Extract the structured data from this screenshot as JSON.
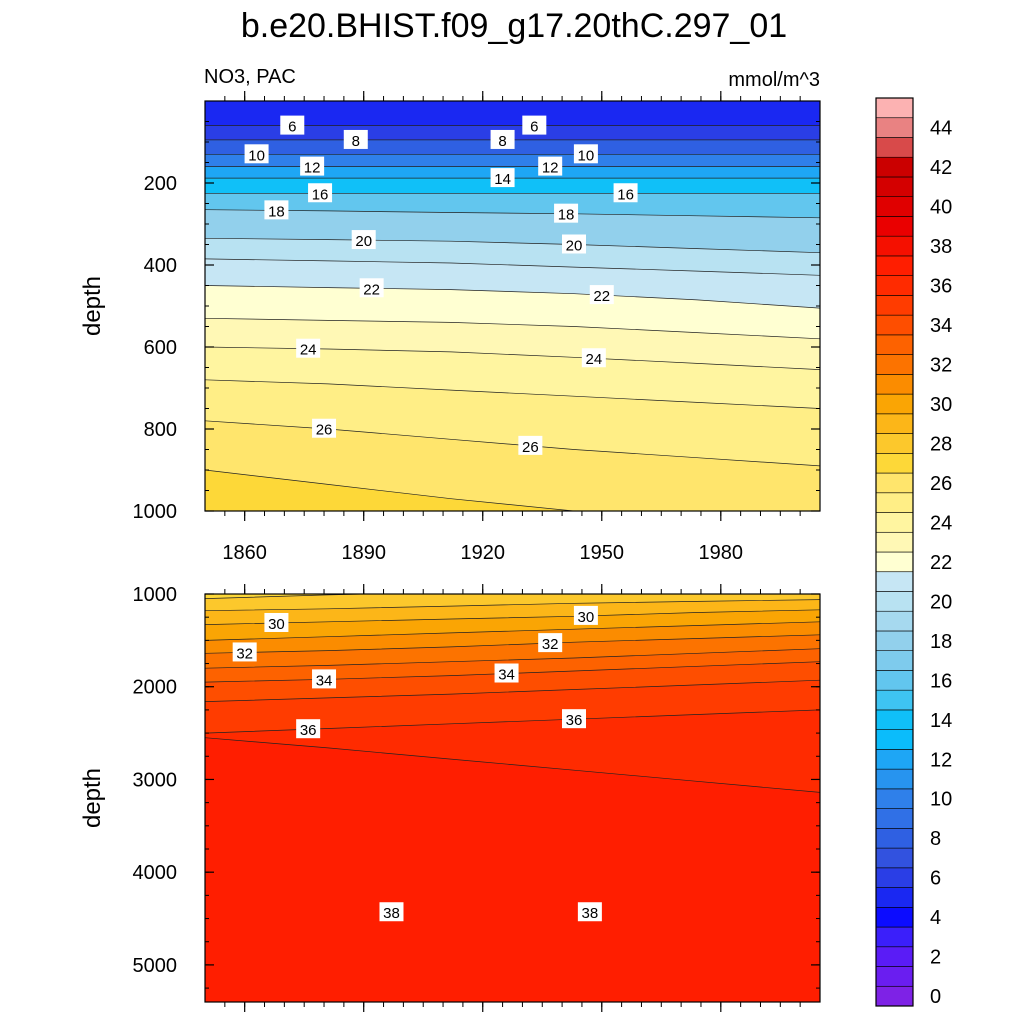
{
  "chart_data": {
    "type": "contour",
    "title": "b.e20.BHIST.f09_g17.20thC.297_01",
    "variable_label": "NO3, PAC",
    "units_label": "mmol/m^3",
    "x_axis": {
      "range": [
        1850,
        2005
      ],
      "tick_values": [
        1860,
        1890,
        1920,
        1950,
        1980
      ],
      "tick_labels": [
        "1860",
        "1890",
        "1920",
        "1950",
        "1980"
      ]
    },
    "panels": [
      {
        "name": "upper",
        "ylabel": "depth",
        "y_range": [
          0,
          1000
        ],
        "y_reversed": true,
        "y_tick_values": [
          200,
          400,
          600,
          800,
          1000
        ],
        "y_tick_labels": [
          "200",
          "400",
          "600",
          "800",
          "1000"
        ],
        "contour_interval": 1,
        "contours": [
          {
            "level": 6,
            "y": [
              60,
              60,
              60,
              60,
              60,
              60
            ]
          },
          {
            "level": 8,
            "y": [
              95,
              95,
              95,
              95,
              95,
              95
            ]
          },
          {
            "level": 10,
            "y": [
              130,
              130,
              130,
              130,
              130,
              130
            ]
          },
          {
            "level": 12,
            "y": [
              160,
              160,
              160,
              160,
              160,
              160
            ]
          },
          {
            "level": 14,
            "y": [
              188,
              188,
              188,
              188,
              188,
              188
            ]
          },
          {
            "level": 16,
            "y": [
              225,
              225,
              225,
              225,
              225,
              225
            ]
          },
          {
            "level": 18,
            "y": [
              265,
              268,
              272,
              275,
              280,
              285
            ]
          },
          {
            "level": 20,
            "y": [
              335,
              338,
              342,
              350,
              360,
              370
            ]
          },
          {
            "level": 21,
            "y": [
              385,
              390,
              395,
              405,
              415,
              425
            ]
          },
          {
            "level": 22,
            "y": [
              450,
              455,
              460,
              470,
              485,
              505
            ]
          },
          {
            "level": 23,
            "y": [
              530,
              535,
              540,
              550,
              565,
              580
            ]
          },
          {
            "level": 24,
            "y": [
              600,
              605,
              612,
              625,
              640,
              655
            ]
          },
          {
            "level": 25,
            "y": [
              680,
              690,
              705,
              720,
              735,
              750
            ]
          },
          {
            "level": 26,
            "y": [
              780,
              800,
              825,
              850,
              870,
              890
            ]
          },
          {
            "level": 27,
            "y": [
              900,
              935,
              970,
              1000,
              1015,
              1020
            ]
          }
        ],
        "labels": [
          {
            "level": 6,
            "x": [
              1872,
              1933
            ]
          },
          {
            "level": 8,
            "x": [
              1888,
              1925
            ]
          },
          {
            "level": 10,
            "x": [
              1863,
              1946
            ]
          },
          {
            "level": 12,
            "x": [
              1877,
              1937
            ]
          },
          {
            "level": 14,
            "x": [
              1925
            ]
          },
          {
            "level": 16,
            "x": [
              1879,
              1956
            ]
          },
          {
            "level": 18,
            "x": [
              1868,
              1941
            ]
          },
          {
            "level": 20,
            "x": [
              1890,
              1943
            ]
          },
          {
            "level": 22,
            "x": [
              1892,
              1950
            ]
          },
          {
            "level": 24,
            "x": [
              1876,
              1948
            ]
          },
          {
            "level": 26,
            "x": [
              1880,
              1932
            ]
          }
        ]
      },
      {
        "name": "lower",
        "ylabel": "depth",
        "y_range": [
          1000,
          5400
        ],
        "y_reversed": true,
        "y_tick_values": [
          1000,
          2000,
          3000,
          4000,
          5000
        ],
        "y_tick_labels": [
          "1000",
          "2000",
          "3000",
          "4000",
          "5000"
        ],
        "contour_interval": 1,
        "contours": [
          {
            "level": 28,
            "y": [
              1050,
              1010,
              980,
              960,
              950,
              945
            ]
          },
          {
            "level": 29,
            "y": [
              1180,
              1160,
              1130,
              1100,
              1080,
              1060
            ]
          },
          {
            "level": 30,
            "y": [
              1330,
              1300,
              1270,
              1240,
              1200,
              1170
            ]
          },
          {
            "level": 31,
            "y": [
              1500,
              1460,
              1420,
              1380,
              1340,
              1300
            ]
          },
          {
            "level": 32,
            "y": [
              1640,
              1610,
              1570,
              1520,
              1480,
              1440
            ]
          },
          {
            "level": 33,
            "y": [
              1800,
              1770,
              1730,
              1690,
              1640,
              1590
            ]
          },
          {
            "level": 34,
            "y": [
              1950,
              1920,
              1880,
              1830,
              1780,
              1730
            ]
          },
          {
            "level": 35,
            "y": [
              2160,
              2120,
              2080,
              2030,
              1980,
              1930
            ]
          },
          {
            "level": 36,
            "y": [
              2500,
              2450,
              2400,
              2350,
              2300,
              2250
            ]
          },
          {
            "level": 37,
            "y": [
              2550,
              2660,
              2780,
              2900,
              3020,
              3140
            ]
          }
        ],
        "labels": [
          {
            "level": 30,
            "x": [
              1868,
              1946
            ]
          },
          {
            "level": 32,
            "x": [
              1860,
              1937
            ]
          },
          {
            "level": 34,
            "x": [
              1880,
              1926
            ]
          },
          {
            "level": 36,
            "x": [
              1876,
              1943
            ]
          },
          {
            "level": 38,
            "x": [
              1897,
              1947
            ]
          }
        ]
      }
    ],
    "colorbar": {
      "levels": [
        0,
        1,
        2,
        3,
        4,
        5,
        6,
        7,
        8,
        9,
        10,
        11,
        12,
        13,
        14,
        15,
        16,
        17,
        18,
        19,
        20,
        21,
        22,
        23,
        24,
        25,
        26,
        27,
        28,
        29,
        30,
        31,
        32,
        33,
        34,
        35,
        36,
        37,
        38,
        39,
        40,
        41,
        42,
        43,
        44,
        45
      ],
      "labels": [
        "0",
        "2",
        "4",
        "6",
        "8",
        "10",
        "12",
        "14",
        "16",
        "18",
        "20",
        "22",
        "24",
        "26",
        "28",
        "30",
        "32",
        "34",
        "36",
        "38",
        "40",
        "42",
        "44"
      ],
      "colors": [
        "#7e22e6",
        "#6a1ef0",
        "#5a1cf6",
        "#3b1ffa",
        "#0c0cff",
        "#1a28f2",
        "#2a3ee6",
        "#3252df",
        "#2f60e2",
        "#3070e6",
        "#2f80ea",
        "#2794ef",
        "#1ea6f5",
        "#0bbcfb",
        "#10c0f8",
        "#3ec4f2",
        "#62c6ee",
        "#7ecbed",
        "#92d0ec",
        "#a6d9ef",
        "#b8e2f2",
        "#c6e6f4",
        "#ffffd2",
        "#fff8b5",
        "#fff5a0",
        "#ffee86",
        "#ffe56c",
        "#fdd838",
        "#fcc82c",
        "#fcb618",
        "#faa504",
        "#fb8c00",
        "#fc7300",
        "#fd6200",
        "#fe4e00",
        "#ff3c00",
        "#ff2b00",
        "#ff1e00",
        "#f51000",
        "#ea0000",
        "#e00000",
        "#d40000",
        "#cb0000",
        "#d84a4a",
        "#e98282",
        "#fcb2b2"
      ]
    }
  }
}
